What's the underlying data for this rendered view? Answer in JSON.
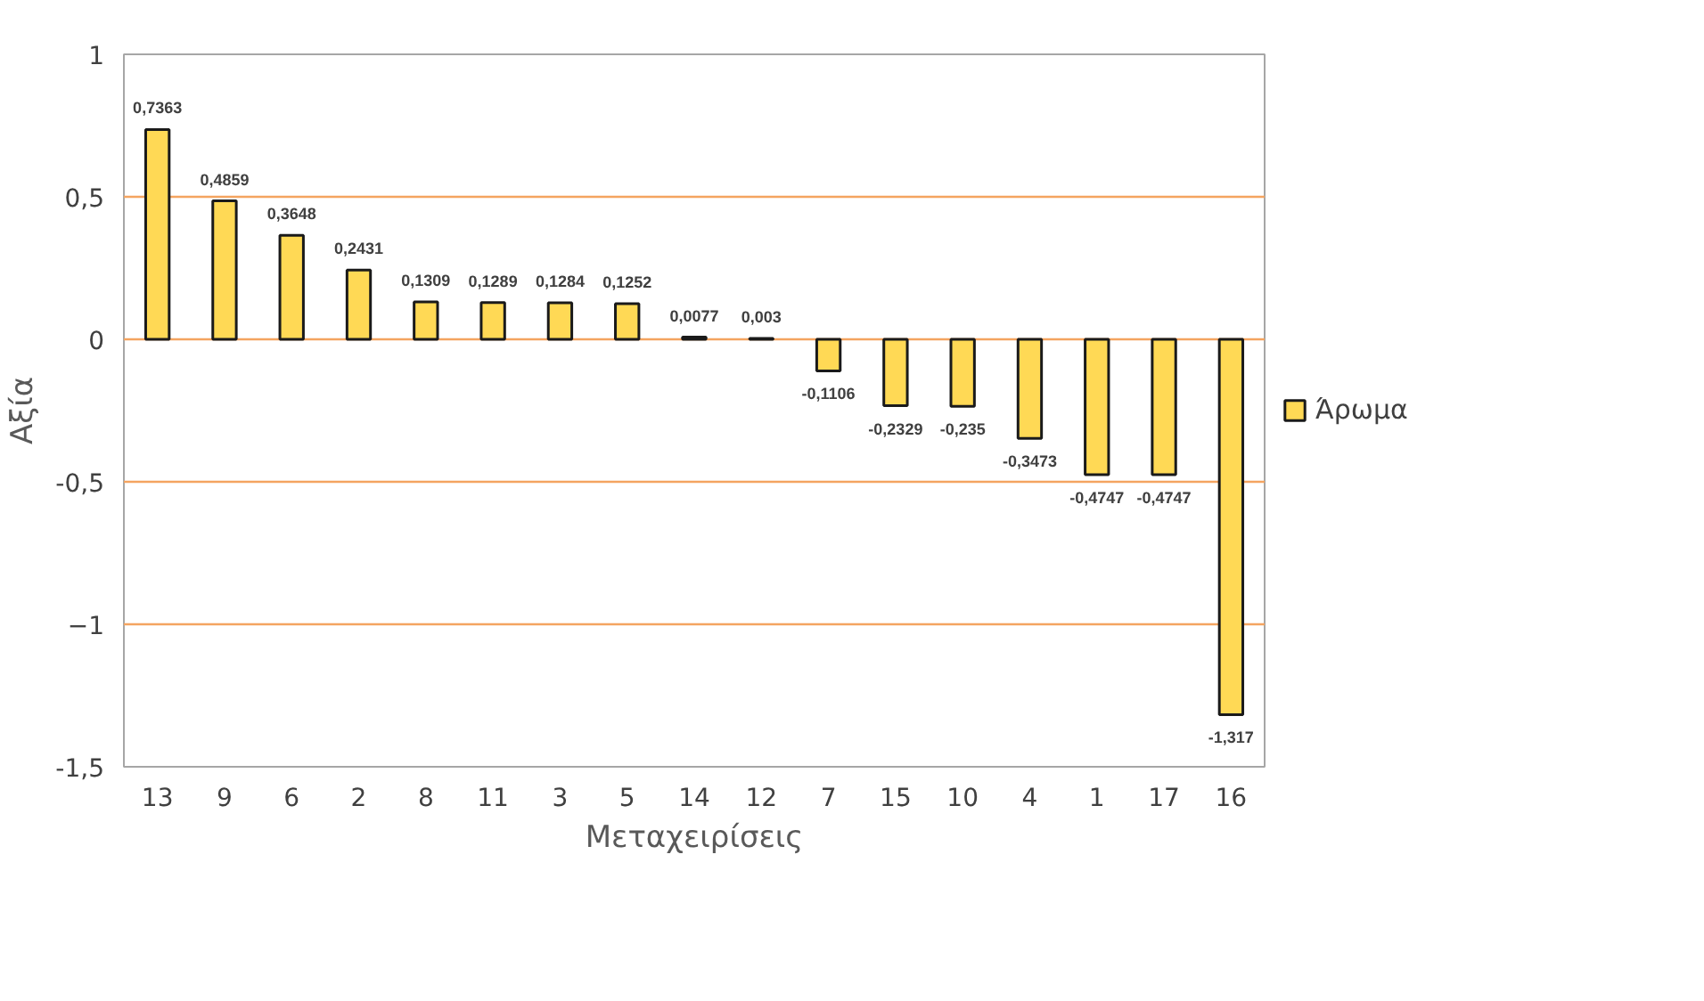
{
  "chart_data": {
    "type": "bar",
    "xlabel": "Μεταχειρίσεις",
    "ylabel": "Αξία",
    "categories": [
      "13",
      "9",
      "6",
      "2",
      "8",
      "11",
      "3",
      "5",
      "14",
      "12",
      "7",
      "15",
      "10",
      "4",
      "1",
      "17",
      "16"
    ],
    "series": [
      {
        "name": "Άρωμα",
        "color": "#ffd955",
        "values": [
          0.7363,
          0.4859,
          0.3648,
          0.2431,
          0.1309,
          0.1289,
          0.1284,
          0.1252,
          0.0077,
          0.003,
          -0.1106,
          -0.2329,
          -0.235,
          -0.3473,
          -0.4747,
          -0.4747,
          -1.317
        ],
        "value_labels": [
          "0,7363",
          "0,4859",
          "0,3648",
          "0,2431",
          "0,1309",
          "0,1289",
          "0,1284",
          "0,1252",
          "0,0077",
          "0,003",
          "-0,1106",
          "-0,2329",
          "-0,235",
          "-0,3473",
          "-0,4747",
          "-0,4747",
          "-1,317"
        ]
      }
    ],
    "ylim": [
      -1.5,
      1
    ],
    "yticks": [
      {
        "value": -1.5,
        "label": "-1,5"
      },
      -1,
      {
        "value": -0.5,
        "label": "-0,5"
      },
      0,
      {
        "value": 0.5,
        "label": "0,5"
      },
      1
    ],
    "grid": "y",
    "legend": "right"
  }
}
